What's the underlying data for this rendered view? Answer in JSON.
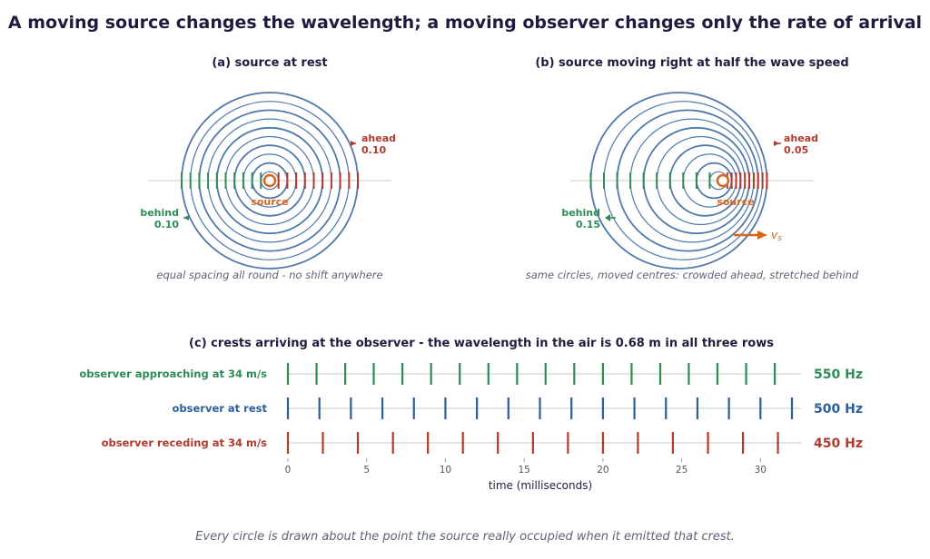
{
  "title": "A moving source changes the wavelength;  a moving observer changes only the rate of arrival",
  "panel_a": {
    "heading": "(a)  source at rest",
    "source_label": "source",
    "ahead_label": "ahead",
    "ahead_value": "0.10",
    "behind_label": "behind",
    "behind_value": "0.10",
    "caption": "equal spacing all round - no shift anywhere",
    "source_speed_fraction": 0
  },
  "panel_b": {
    "heading": "(b)  source moving right at half the wave speed",
    "source_label": "source",
    "ahead_label": "ahead",
    "ahead_value": "0.05",
    "behind_label": "behind",
    "behind_value": "0.15",
    "velocity_label": "v",
    "velocity_subscript": "s",
    "caption": "same circles, moved centres:  crowded ahead, stretched behind",
    "source_speed_fraction": 0.5
  },
  "panel_c": {
    "heading": "(c)  crests arriving at the observer - the wavelength in the air is 0.68 m in all three rows",
    "xlabel": "time  (milliseconds)",
    "rows": [
      {
        "label": "observer approaching at 34 m/s",
        "freq_label": "550 Hz",
        "freq_hz": 550,
        "color": "#2e8b57"
      },
      {
        "label": "observer at rest",
        "freq_label": "500 Hz",
        "freq_hz": 500,
        "color": "#2c5e9e"
      },
      {
        "label": "observer receding at 34 m/s",
        "freq_label": "450 Hz",
        "freq_hz": 450,
        "color": "#b03a2e"
      }
    ]
  },
  "chart_data": {
    "type": "scatter",
    "title": "(c)  crests arriving at the observer - the wavelength in the air is 0.68 m in all three rows",
    "xlabel": "time  (milliseconds)",
    "ylabel": "",
    "xlim": [
      0,
      32
    ],
    "x_ticks": [
      "0",
      "5",
      "10",
      "15",
      "20",
      "25",
      "30"
    ],
    "series": [
      {
        "name": "observer approaching at 34 m/s",
        "frequency_hz": 550,
        "x": [
          0,
          1.82,
          3.64,
          5.45,
          7.27,
          9.09,
          10.91,
          12.73,
          14.55,
          16.36,
          18.18,
          20.0,
          21.82,
          23.64,
          25.45,
          27.27,
          29.09,
          30.91
        ]
      },
      {
        "name": "observer at rest",
        "frequency_hz": 500,
        "x": [
          0,
          2,
          4,
          6,
          8,
          10,
          12,
          14,
          16,
          18,
          20,
          22,
          24,
          26,
          28,
          30,
          32
        ]
      },
      {
        "name": "observer receding at 34 m/s",
        "frequency_hz": 450,
        "x": [
          0,
          2.22,
          4.44,
          6.67,
          8.89,
          11.11,
          13.33,
          15.56,
          17.78,
          20.0,
          22.22,
          24.44,
          26.67,
          28.89,
          31.11
        ]
      }
    ]
  },
  "footer": "Every circle is drawn about the point the source really occupied when it emitted that crest.",
  "colors": {
    "title": "#1e1d3f",
    "circle": "#4f78ad",
    "ahead": "#b03a2e",
    "behind": "#2e8b57",
    "source": "#d9661f",
    "rest": "#2c5e9e",
    "caption": "#5d6275",
    "axis": "#c8c8c8"
  }
}
